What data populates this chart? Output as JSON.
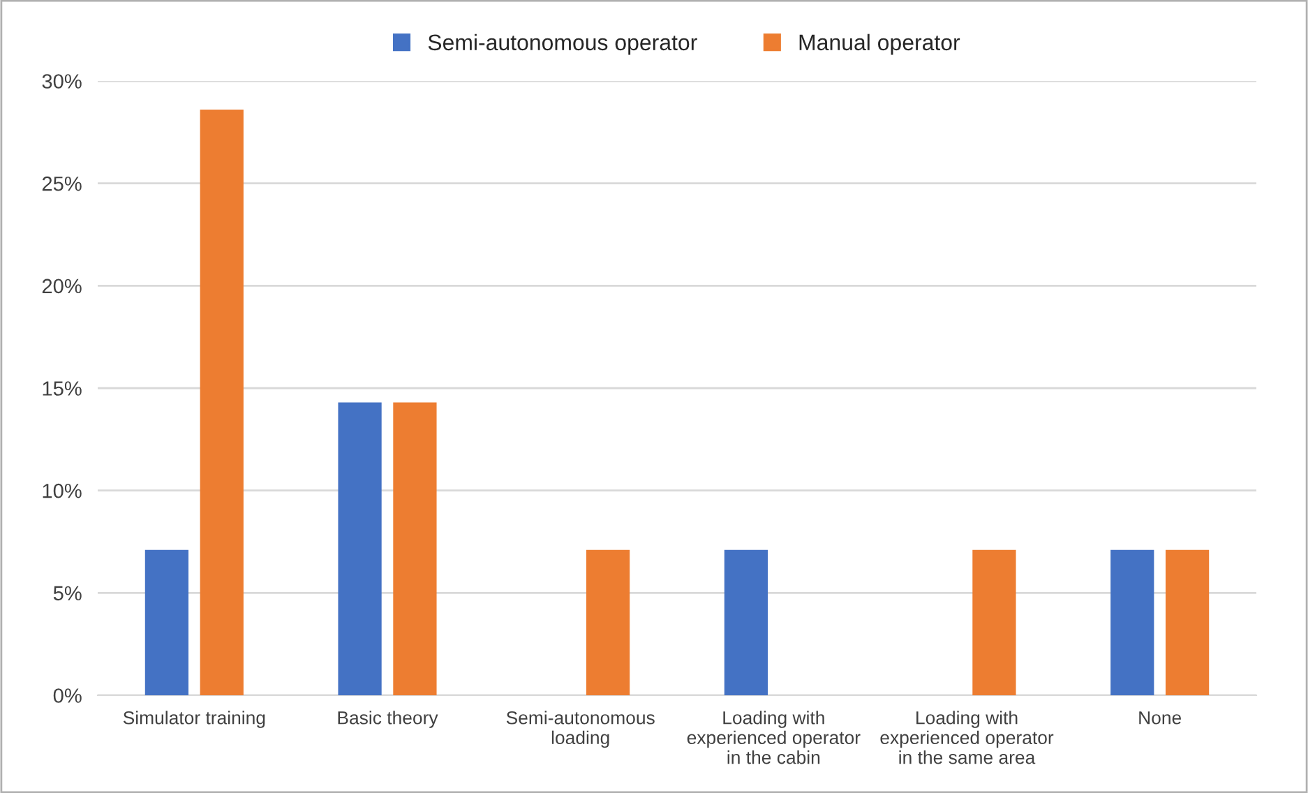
{
  "chart_data": {
    "type": "bar",
    "categories": [
      "Simulator training",
      "Basic theory",
      "Semi-autonomous\nloading",
      "Loading with\nexperienced operator\nin the cabin",
      "Loading with\nexperienced operator\nin the same area",
      "None"
    ],
    "series": [
      {
        "name": "Semi-autonomous operator",
        "color": "#4472c4",
        "values": [
          7.1,
          14.3,
          null,
          7.1,
          null,
          7.1
        ]
      },
      {
        "name": "Manual operator",
        "color": "#ed7d31",
        "values": [
          28.6,
          14.3,
          7.1,
          null,
          7.1,
          7.1
        ]
      }
    ],
    "ylim": [
      0,
      30
    ],
    "yticks": [
      {
        "value": 0,
        "label": "0%"
      },
      {
        "value": 5,
        "label": "5%"
      },
      {
        "value": 10,
        "label": "10%"
      },
      {
        "value": 15,
        "label": "15%"
      },
      {
        "value": 20,
        "label": "20%"
      },
      {
        "value": 25,
        "label": "25%"
      },
      {
        "value": 30,
        "label": "30%"
      }
    ],
    "grid": "y",
    "legend": "top"
  }
}
